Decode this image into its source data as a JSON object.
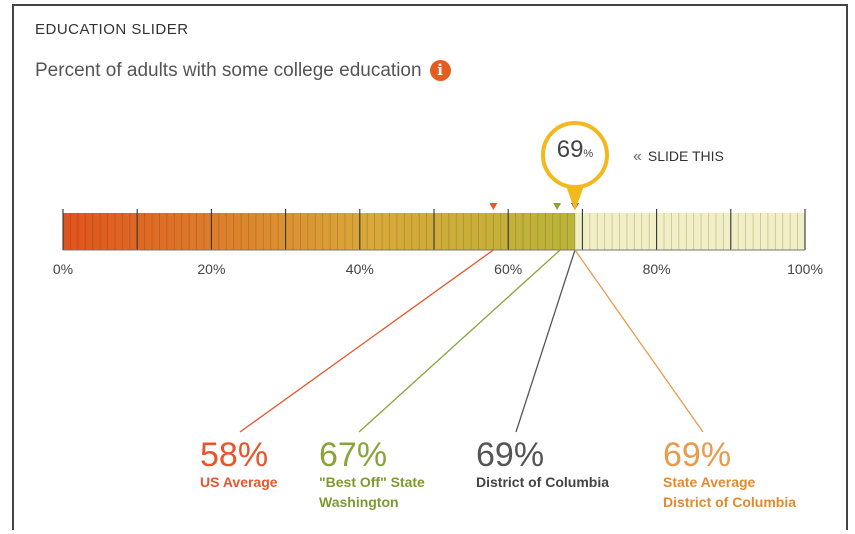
{
  "header": {
    "title": "EDUCATION SLIDER"
  },
  "subtitle": {
    "text": "Percent of adults with some college education",
    "info_icon": "info-icon"
  },
  "slider": {
    "value": 69,
    "value_text": "69",
    "value_unit": "%",
    "hint_text": "SLIDE THIS",
    "hint_icon": "double-chevron-left-icon",
    "min": 0,
    "max": 100,
    "tick_labels": [
      "0%",
      "20%",
      "40%",
      "60%",
      "80%",
      "100%"
    ],
    "gradient_colors": [
      "#e0531d",
      "#d9a93a",
      "#b9b43a"
    ],
    "remainder_color": "#f1efc8"
  },
  "markers": [
    {
      "value": 58,
      "value_text": "58%",
      "label_lines": [
        "US Average"
      ],
      "color": "#e8552b",
      "label_color": "#e8552b"
    },
    {
      "value": 67,
      "value_text": "67%",
      "label_lines": [
        "\"Best Off\" State",
        "Washington"
      ],
      "color": "#8aa33a",
      "label_color": "#7d9a2f"
    },
    {
      "value": 69,
      "value_text": "69%",
      "label_lines": [
        "District of Columbia"
      ],
      "color": "#555555",
      "label_color": "#444444"
    },
    {
      "value": 69,
      "value_text": "69%",
      "label_lines": [
        "State Average",
        "District of Columbia"
      ],
      "color": "#e99a4b",
      "label_color": "#e48a2b"
    }
  ]
}
